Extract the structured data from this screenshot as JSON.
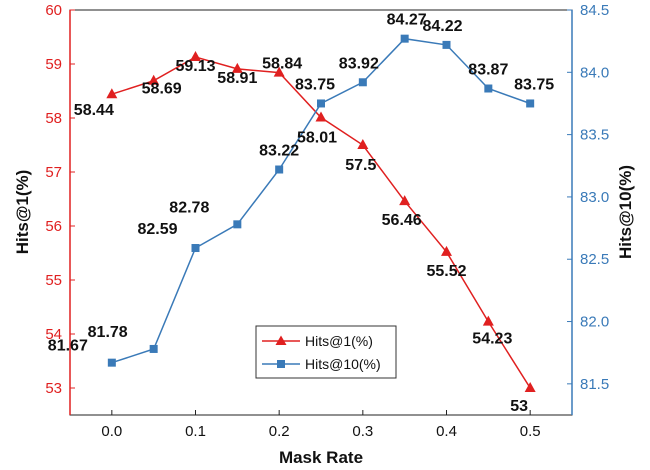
{
  "chart_data": {
    "type": "line",
    "x": [
      0.0,
      0.05,
      0.1,
      0.15,
      0.2,
      0.25,
      0.3,
      0.35,
      0.4,
      0.45,
      0.5
    ],
    "x_ticks": [
      "0.0",
      "0.1",
      "0.2",
      "0.3",
      "0.4",
      "0.5"
    ],
    "xlabel": "Mask Rate",
    "xlim": [
      -0.05,
      0.55
    ],
    "y_left": {
      "label": "Hits@1(%)",
      "lim": [
        52.5,
        60
      ],
      "ticks": [
        "53",
        "54",
        "55",
        "56",
        "57",
        "58",
        "59",
        "60"
      ],
      "color": "#e02020"
    },
    "y_right": {
      "label": "Hits@10(%)",
      "lim": [
        81.25,
        84.5
      ],
      "ticks": [
        "81.5",
        "82.0",
        "82.5",
        "83.0",
        "83.5",
        "84.0",
        "84.5"
      ],
      "color": "#3a7ab8"
    },
    "series": [
      {
        "name": "Hits@1(%)",
        "axis": "left",
        "marker": "triangle",
        "color": "#e02020",
        "values": [
          58.44,
          58.69,
          59.13,
          58.91,
          58.84,
          58.01,
          57.5,
          56.46,
          55.52,
          54.23,
          53
        ],
        "labels": [
          "58.44",
          "58.69",
          "59.13",
          "58.91",
          "58.84",
          "58.01",
          "57.5",
          "56.46",
          "55.52",
          "54.23",
          "53"
        ]
      },
      {
        "name": "Hits@10(%)",
        "axis": "right",
        "marker": "square",
        "color": "#3a7ab8",
        "values": [
          81.67,
          81.78,
          82.59,
          82.78,
          83.22,
          83.75,
          83.92,
          84.27,
          84.22,
          83.87,
          83.75
        ],
        "labels": [
          "81.67",
          "81.78",
          "82.59",
          "82.78",
          "83.22",
          "83.75",
          "83.92",
          "84.27",
          "84.22",
          "83.87",
          "83.75"
        ]
      }
    ],
    "legend_placement": "lower-center",
    "grid": false
  }
}
